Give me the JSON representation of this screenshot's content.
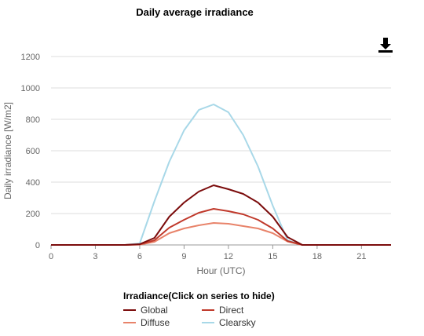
{
  "title": "Daily average irradiance",
  "download_icon": "download-icon",
  "chart_data": {
    "type": "line",
    "x": [
      0,
      1,
      2,
      3,
      4,
      5,
      6,
      7,
      8,
      9,
      10,
      11,
      12,
      13,
      14,
      15,
      16,
      17,
      18,
      19,
      20,
      21,
      22,
      23
    ],
    "xticks": [
      0,
      3,
      6,
      9,
      12,
      15,
      18,
      21
    ],
    "xlim": [
      0,
      23
    ],
    "yticks": [
      0,
      200,
      400,
      600,
      800,
      1000,
      1200
    ],
    "ylim": [
      0,
      1200
    ],
    "xlabel": "Hour (UTC)",
    "ylabel": "Daily irradiance [W/m2]",
    "grid": true,
    "series": [
      {
        "name": "Global",
        "color": "#7b0c0c",
        "values": [
          0,
          0,
          0,
          0,
          0,
          0,
          5,
          45,
          180,
          270,
          340,
          380,
          355,
          325,
          270,
          180,
          50,
          0,
          0,
          0,
          0,
          0,
          0,
          0
        ]
      },
      {
        "name": "Direct",
        "color": "#c0392b",
        "values": [
          0,
          0,
          0,
          0,
          0,
          0,
          3,
          30,
          110,
          160,
          205,
          230,
          215,
          195,
          160,
          105,
          25,
          0,
          0,
          0,
          0,
          0,
          0,
          0
        ]
      },
      {
        "name": "Diffuse",
        "color": "#e8836a",
        "values": [
          0,
          0,
          0,
          0,
          0,
          0,
          2,
          20,
          75,
          105,
          125,
          140,
          135,
          120,
          105,
          75,
          22,
          0,
          0,
          0,
          0,
          0,
          0,
          0
        ]
      },
      {
        "name": "Clearsky",
        "color": "#a8d8e8",
        "values": [
          0,
          0,
          0,
          0,
          0,
          0,
          10,
          280,
          530,
          730,
          860,
          895,
          845,
          700,
          500,
          250,
          30,
          0,
          0,
          0,
          0,
          0,
          0,
          0
        ]
      }
    ]
  },
  "legend": {
    "title": "Irradiance(Click on series to hide)"
  }
}
